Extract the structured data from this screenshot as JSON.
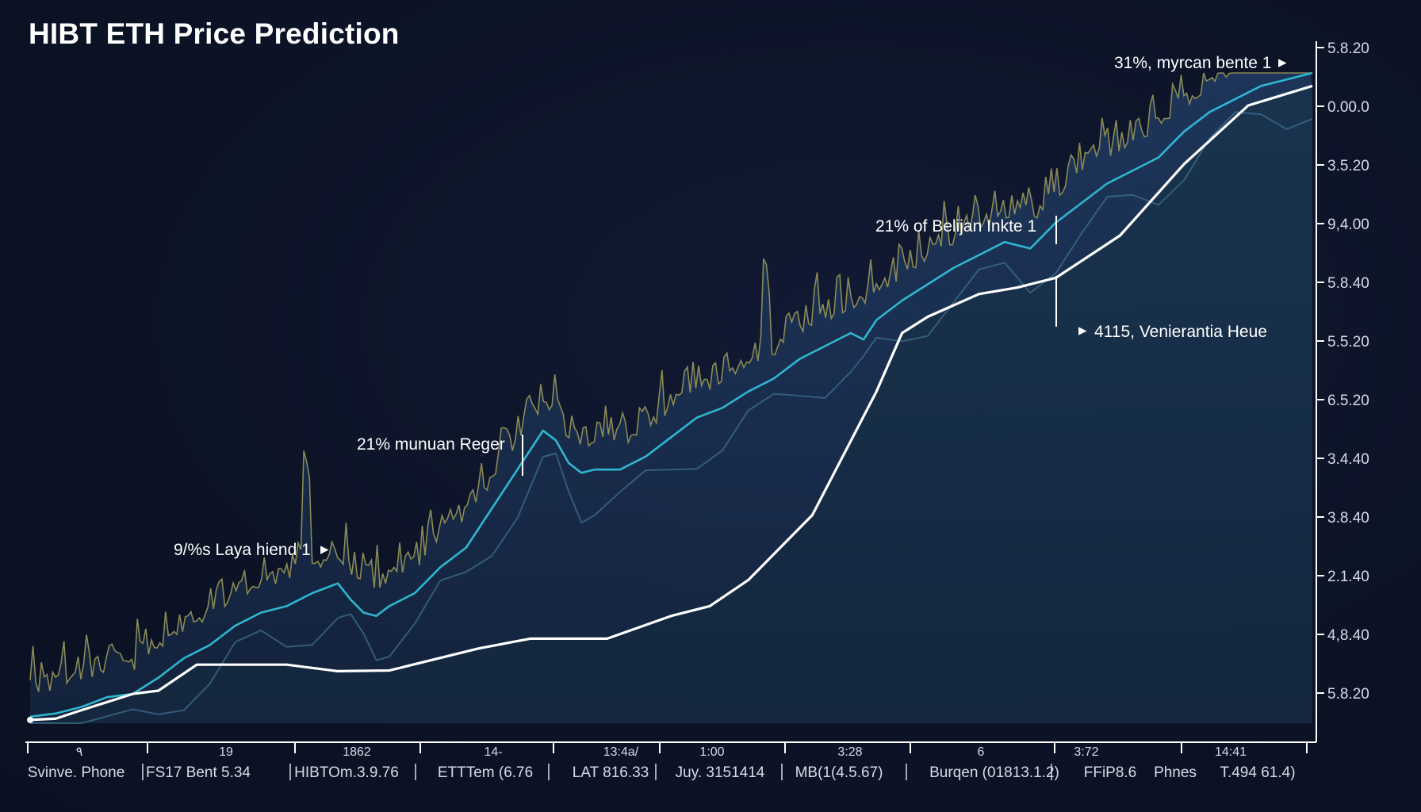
{
  "title": "HIBT ETH Price Prediction",
  "colors": {
    "background": "#0d1428",
    "volatile_line": "#8a8a55",
    "volatile_fill": "#1c3152",
    "trend_line": "#2fb6d0",
    "ghost_line": "#3e6d8c",
    "prediction_line": "#ffffff",
    "prediction_fill": "#17304a",
    "axis": "#ffffff",
    "text": "#d6dbe6"
  },
  "chart_data": {
    "type": "line",
    "title": "HIBT ETH Price Prediction",
    "xlabel": "",
    "ylabel": "",
    "grid": false,
    "legend": "none",
    "y_axis_position": "right",
    "y_tick_labels": [
      "5.8.20",
      "0.00.0",
      "3.5.20",
      "9,4.00",
      "5.8.40",
      "5.5.20",
      "6.5.20",
      "3.4.40",
      "3.8.40",
      "2.1.40",
      "4,8.40",
      "5.8.20"
    ],
    "x_tick_numbers": [
      "٩",
      "19",
      "1862",
      "14-",
      "13:4a/",
      "1:00",
      "3:28",
      "6",
      "3:72",
      "14:41"
    ],
    "x_tick_labels": [
      "Svinve. Phone",
      "FS17 Bent 5.34",
      "HIBTOm.3.9.76",
      "ETTTem (6.76",
      "LAT 816.33",
      "Juy. 3151414",
      "MB(1(4.5.67)",
      "Burqen (01813.1.2)",
      "FFiP8.6",
      "Phnes",
      "T.494 61.4)"
    ],
    "annotations": [
      {
        "text": "31%, myrcan bente 1",
        "marker": "▸"
      },
      {
        "text": "21% of Belijan Inkte 1",
        "marker": ""
      },
      {
        "text": "4115, Venierantia Heue",
        "marker": "▸"
      },
      {
        "text": "21% munuan Reger",
        "marker": ""
      },
      {
        "text": "9/%s Laya hiend 1",
        "marker": "▸"
      }
    ],
    "series": [
      {
        "role": "prediction",
        "x": [
          0,
          2,
          4,
          8,
          10,
          13,
          20,
          24,
          28,
          35,
          39,
          42,
          45,
          50,
          53,
          56,
          61,
          66,
          68,
          70,
          74,
          77,
          80,
          85,
          90,
          95,
          100
        ],
        "y": [
          0.5,
          0.7,
          2.0,
          4.5,
          5.0,
          9.0,
          9.0,
          8.0,
          8.1,
          11.5,
          13.0,
          13.0,
          13.0,
          16.5,
          18.0,
          22.0,
          32.0,
          51.0,
          60.0,
          62.5,
          66.0,
          67.0,
          68.5,
          75.0,
          86.0,
          95.0,
          98.0
        ]
      },
      {
        "role": "trend",
        "x": [
          0,
          2,
          4,
          6,
          8,
          10,
          12,
          14,
          16,
          18,
          20,
          22,
          24,
          25,
          26,
          27,
          28,
          30,
          32,
          34,
          36,
          38,
          40,
          41,
          42,
          43,
          44,
          46,
          48,
          50,
          52,
          54,
          56,
          58,
          60,
          62,
          64,
          65,
          66,
          68,
          70,
          72,
          74,
          76,
          78,
          80,
          82,
          84,
          86,
          88,
          90,
          92,
          94,
          96,
          98,
          100
        ],
        "y": [
          1.0,
          1.5,
          2.5,
          4.0,
          4.5,
          7.0,
          10.0,
          12.0,
          15.0,
          17.0,
          18.0,
          20.0,
          21.5,
          19.0,
          17.0,
          16.5,
          18.0,
          20.0,
          24.0,
          27.0,
          33.0,
          39.0,
          45.0,
          43.5,
          40.0,
          38.5,
          39.0,
          39.0,
          41.0,
          44.0,
          47.0,
          48.5,
          51.0,
          53.0,
          56.0,
          58.0,
          60.0,
          59.0,
          62.0,
          65.0,
          67.5,
          70.0,
          72.0,
          74.0,
          73.0,
          77.0,
          80.0,
          83.0,
          85.0,
          87.0,
          91.0,
          94.0,
          96.0,
          98.0,
          99.0,
          100.0
        ]
      }
    ]
  }
}
